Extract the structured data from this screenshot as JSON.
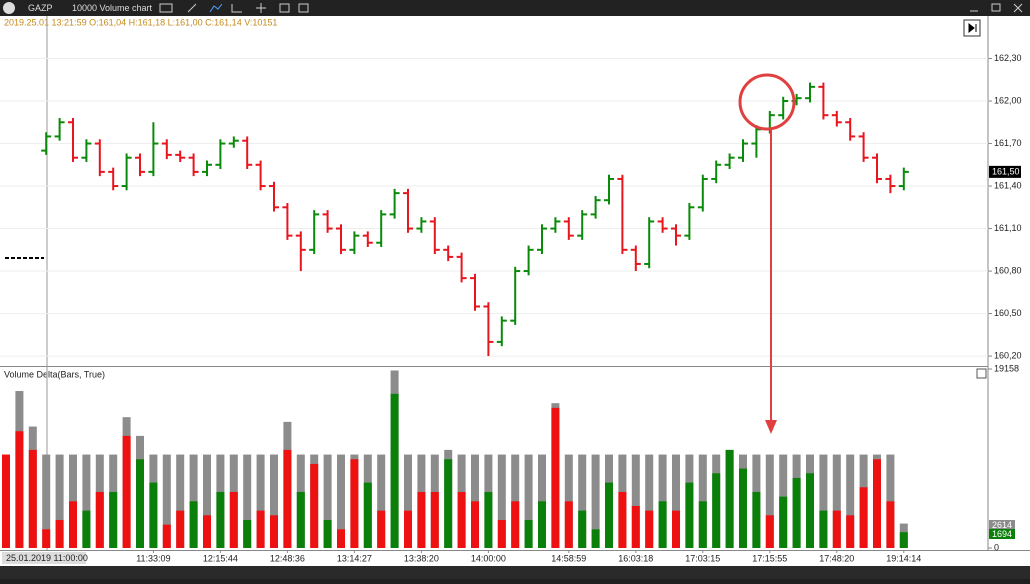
{
  "toolbar": {
    "symbol": "GAZP",
    "chart_type": "10000 Volume chart"
  },
  "chart_data": [
    {
      "type": "ohlc",
      "info": "2019.25.01 13:21:59  O:161,04  H:161,18  L:161,00  C:161,14  V:10151",
      "last_price_label": "161,50",
      "colors": {
        "up": "#0a8a0a",
        "down": "#e8141e",
        "flat": "#000000"
      },
      "open": [
        null,
        null,
        null,
        161.65,
        161.75,
        161.85,
        161.6,
        161.7,
        161.5,
        161.4,
        161.6,
        161.5,
        161.7,
        161.62,
        161.6,
        161.5,
        161.55,
        161.7,
        161.72,
        161.55,
        161.4,
        161.25,
        161.05,
        160.95,
        161.2,
        161.1,
        160.95,
        161.05,
        161.0,
        161.2,
        161.35,
        161.1,
        161.15,
        160.95,
        160.9,
        160.75,
        160.55,
        160.3,
        160.45,
        160.8,
        160.95,
        161.1,
        161.15,
        161.05,
        161.2,
        161.3,
        161.45,
        160.95,
        160.85,
        161.15,
        161.1,
        161.05,
        161.25,
        161.45,
        161.55,
        161.6,
        161.7,
        161.8,
        161.9,
        162.0,
        162.02,
        162.1,
        161.9,
        161.85,
        161.75,
        161.6,
        161.45,
        161.4
      ],
      "high": [
        null,
        null,
        null,
        161.78,
        161.88,
        161.88,
        161.73,
        161.73,
        161.53,
        161.63,
        161.63,
        161.85,
        161.73,
        161.65,
        161.63,
        161.58,
        161.73,
        161.75,
        161.75,
        161.58,
        161.43,
        161.28,
        161.08,
        161.23,
        161.23,
        161.13,
        161.08,
        161.08,
        161.23,
        161.38,
        161.38,
        161.18,
        161.18,
        160.98,
        160.93,
        160.78,
        160.58,
        160.48,
        160.83,
        160.98,
        161.13,
        161.18,
        161.18,
        161.23,
        161.33,
        161.48,
        161.48,
        160.98,
        161.18,
        161.18,
        161.13,
        161.28,
        161.48,
        161.58,
        161.63,
        161.73,
        161.83,
        161.93,
        162.03,
        162.05,
        162.13,
        162.13,
        161.93,
        161.88,
        161.78,
        161.63,
        161.48,
        161.53
      ],
      "low": [
        null,
        null,
        null,
        161.62,
        161.72,
        161.57,
        161.57,
        161.47,
        161.37,
        161.37,
        161.47,
        161.47,
        161.59,
        161.57,
        161.47,
        161.47,
        161.52,
        161.67,
        161.52,
        161.37,
        161.22,
        161.02,
        160.8,
        160.92,
        161.07,
        160.92,
        160.92,
        160.97,
        160.97,
        161.17,
        161.07,
        161.07,
        160.92,
        160.87,
        160.72,
        160.52,
        160.2,
        160.27,
        160.42,
        160.77,
        160.92,
        161.07,
        161.02,
        161.02,
        161.17,
        161.27,
        160.92,
        160.8,
        160.82,
        161.07,
        160.98,
        161.02,
        161.22,
        161.42,
        161.52,
        161.57,
        161.6,
        161.77,
        161.87,
        161.97,
        161.99,
        161.87,
        161.82,
        161.72,
        161.57,
        161.42,
        161.35,
        161.37
      ],
      "close": [
        null,
        null,
        null,
        161.75,
        161.85,
        161.6,
        161.7,
        161.5,
        161.4,
        161.6,
        161.5,
        161.7,
        161.62,
        161.6,
        161.5,
        161.55,
        161.7,
        161.72,
        161.55,
        161.4,
        161.25,
        161.05,
        160.95,
        161.2,
        161.1,
        160.95,
        161.05,
        161.0,
        161.2,
        161.35,
        161.1,
        161.15,
        160.95,
        160.9,
        160.75,
        160.55,
        160.3,
        160.45,
        160.8,
        160.95,
        161.1,
        161.15,
        161.05,
        161.2,
        161.3,
        161.45,
        160.95,
        160.85,
        161.15,
        161.1,
        161.05,
        161.25,
        161.45,
        161.55,
        161.6,
        161.7,
        161.8,
        161.9,
        162.0,
        162.02,
        162.1,
        161.9,
        161.85,
        161.75,
        161.6,
        161.45,
        161.4,
        161.5
      ],
      "ylim": [
        160.13,
        162.6
      ],
      "yticks": [
        {
          "value": 162.3,
          "label": "162,30"
        },
        {
          "value": 162.0,
          "label": "162,00"
        },
        {
          "value": 161.7,
          "label": "161,70"
        },
        {
          "value": 161.4,
          "label": "161,40"
        },
        {
          "value": 161.1,
          "label": "161,10"
        },
        {
          "value": 160.8,
          "label": "160,80"
        },
        {
          "value": 160.5,
          "label": "160,50"
        },
        {
          "value": 160.2,
          "label": "160,20"
        }
      ],
      "grid": true
    },
    {
      "type": "bar",
      "title": "Volume Delta(Bars, True)",
      "cursor_time_label": "25.01.2019 11:00:00",
      "colors": {
        "volume": "#8c8c8c",
        "positive": "#0a800a",
        "negative": "#ee1111"
      },
      "categories": [
        null,
        null,
        null,
        null,
        null,
        null,
        null,
        null,
        null,
        null,
        null,
        "11:33:09",
        null,
        null,
        null,
        null,
        "12:15:44",
        null,
        null,
        null,
        null,
        "12:48:36",
        null,
        null,
        null,
        null,
        "13:14:27",
        null,
        null,
        null,
        null,
        "13:38:20",
        null,
        null,
        null,
        null,
        "14:00:00",
        null,
        null,
        null,
        null,
        null,
        "14:58:59",
        null,
        null,
        null,
        null,
        "16:03:18",
        null,
        null,
        null,
        null,
        "17:03:15",
        null,
        null,
        null,
        null,
        "17:15:55",
        null,
        null,
        null,
        null,
        "17:48:20",
        null,
        null,
        null,
        null,
        "19:14:14"
      ],
      "volume": [
        10000,
        16800,
        13000,
        10000,
        10000,
        10000,
        10000,
        10000,
        10000,
        14000,
        12000,
        10000,
        10000,
        10000,
        10000,
        10000,
        10000,
        10000,
        10000,
        10000,
        10000,
        13500,
        10000,
        10000,
        10000,
        10000,
        10000,
        10000,
        10000,
        19000,
        10000,
        10000,
        10000,
        10500,
        10000,
        10000,
        10000,
        10000,
        10000,
        10000,
        10000,
        15500,
        10000,
        10000,
        10000,
        10000,
        10000,
        10000,
        10000,
        10000,
        10000,
        10000,
        10000,
        10000,
        10500,
        10000,
        10000,
        10000,
        10000,
        10000,
        10000,
        10000,
        10000,
        10000,
        10000,
        10000,
        10000,
        2614
      ],
      "delta": [
        -10000,
        -12500,
        -10500,
        -2000,
        -3000,
        -5000,
        4000,
        -6000,
        6000,
        -12000,
        9500,
        7000,
        -2500,
        -4000,
        5000,
        -3500,
        6000,
        -6000,
        3000,
        -4000,
        -3500,
        -10500,
        6000,
        -9000,
        3000,
        -2000,
        -9500,
        7000,
        -4000,
        16500,
        -4000,
        -6000,
        -6000,
        9500,
        -6000,
        -5000,
        6000,
        -3000,
        -5000,
        3000,
        5000,
        -15000,
        -5000,
        4000,
        2000,
        7000,
        -6000,
        -4500,
        -4000,
        5000,
        -4000,
        7000,
        5000,
        8000,
        10500,
        8500,
        6000,
        -3500,
        5500,
        7500,
        8000,
        4000,
        -4000,
        -3500,
        -6500,
        -9500,
        -5000,
        1694
      ],
      "ylim": [
        0,
        19158
      ],
      "yticks": [
        0,
        19158
      ]
    }
  ]
}
